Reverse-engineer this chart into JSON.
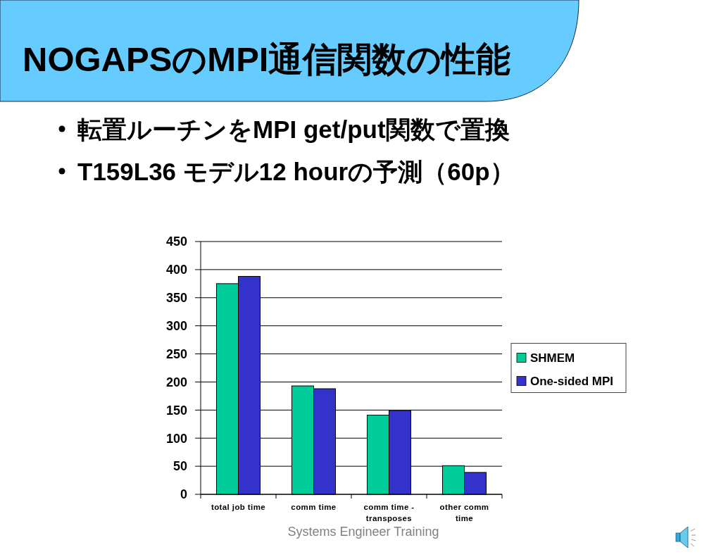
{
  "chart_data": {
    "type": "bar",
    "title": "NOGAPSのMPI通信関数の性能",
    "categories": [
      "total job time",
      "comm time",
      "comm time - transposes",
      "other comm time"
    ],
    "series": [
      {
        "name": "SHMEM",
        "color": "#00cc99",
        "values": [
          375,
          193,
          141,
          51
        ]
      },
      {
        "name": "One-sided MPI",
        "color": "#3333cc",
        "values": [
          388,
          188,
          149,
          39
        ]
      }
    ],
    "ylim": [
      0,
      450
    ],
    "yticks": [
      0,
      50,
      100,
      150,
      200,
      250,
      300,
      350,
      400,
      450
    ],
    "grid": "y",
    "legend": "right",
    "annotations": [
      "転置ルーチンをMPI get/put関数で置換",
      "T159L36 モデル12 hourの予測（60p）",
      "Systems Engineer Training"
    ]
  }
}
